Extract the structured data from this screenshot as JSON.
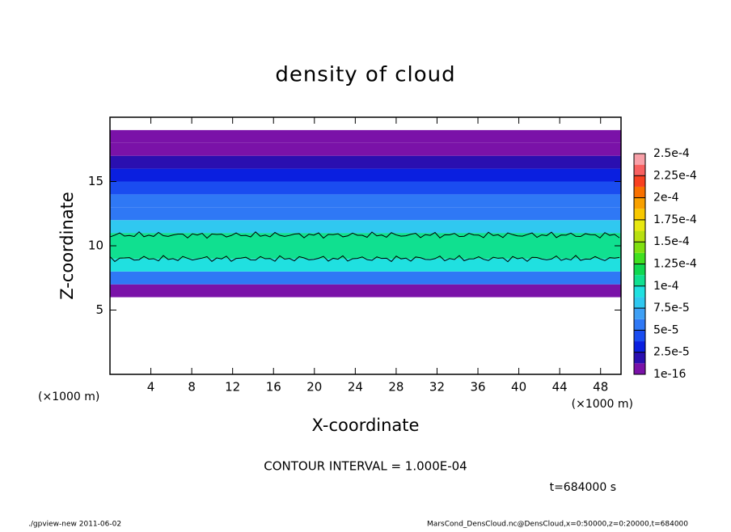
{
  "chart_data": {
    "type": "contour",
    "title": "density of cloud",
    "x_label": "X-coordinate",
    "y_label": "Z-coordinate",
    "x_unit_left": "(×1000 m)",
    "x_unit_right": "(×1000 m)",
    "contour_text": "CONTOUR INTERVAL = 1.000E-04",
    "contour_interval": 0.0001,
    "time_text": "t=684000 s",
    "footer_left": "./gpview-new  2011-06-02",
    "footer_right": "MarsCond_DensCloud.nc@DensCloud,x=0:50000,z=0:20000,t=684000",
    "xlim": [
      0,
      50
    ],
    "xticks": [
      4,
      8,
      12,
      16,
      20,
      24,
      28,
      32,
      36,
      40,
      44,
      48
    ],
    "ylim": [
      0,
      20
    ],
    "yticks": [
      5,
      10,
      15
    ],
    "z_bins": [
      6,
      7,
      8,
      9,
      10,
      11,
      12,
      13,
      14,
      15,
      16,
      17,
      18,
      19
    ],
    "values": [
      1e-05,
      6e-05,
      9e-05,
      0.00011,
      0.00011,
      8e-05,
      6e-05,
      5e-05,
      4.5e-05,
      3.5e-05,
      2e-05,
      1e-05,
      5e-06
    ],
    "colorbar_ticks": [
      {
        "value": 1e-16,
        "label": "1e-16"
      },
      {
        "value": 2.5e-05,
        "label": "2.5e-5"
      },
      {
        "value": 5e-05,
        "label": "5e-5"
      },
      {
        "value": 7.5e-05,
        "label": "7.5e-5"
      },
      {
        "value": 0.0001,
        "label": "1e-4"
      },
      {
        "value": 0.000125,
        "label": "1.25e-4"
      },
      {
        "value": 0.00015,
        "label": "1.5e-4"
      },
      {
        "value": 0.000175,
        "label": "1.75e-4"
      },
      {
        "value": 0.0002,
        "label": "2e-4"
      },
      {
        "value": 0.000225,
        "label": "2.25e-4"
      },
      {
        "value": 0.00025,
        "label": "2.5e-4"
      }
    ],
    "colors": [
      "#7a12a8",
      "#2a0fb0",
      "#0a1fe0",
      "#1a4cf0",
      "#2f78f5",
      "#3fa0f5",
      "#30c8f0",
      "#20e0e0",
      "#10e090",
      "#10d850",
      "#40e020",
      "#80e010",
      "#b8e010",
      "#e8e810",
      "#f8c800",
      "#f8a000",
      "#f87000",
      "#f84020",
      "#f86060",
      "#f8a0a8"
    ]
  }
}
